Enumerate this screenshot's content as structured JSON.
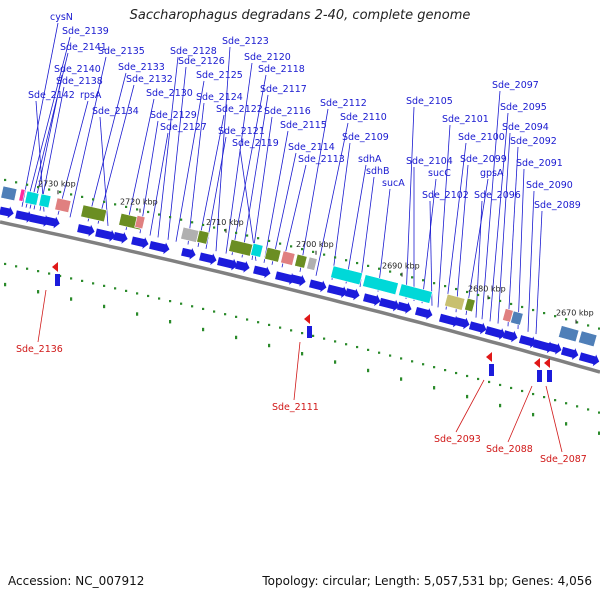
{
  "title": "Saccharophagus degradans 2-40, complete genome",
  "accession": "Accession: NC_007912",
  "summary": "Topology: circular; Length: 5,057,531 bp; Genes: 4,056",
  "colors": {
    "gene": "#1c1cdc",
    "reverse_gene": "#e01818",
    "backbone": "#808080",
    "cog_a": "#00d8d8",
    "cog_b": "#6b8e23",
    "cog_c": "#b0b0b0",
    "cog_d": "#e08080",
    "cog_e": "#4f7fb8",
    "cog_f": "#ff2aa0",
    "cog_g": "#c8c070"
  },
  "tick_labels": [
    "2730 kbp",
    "2720 kbp",
    "2710 kbp",
    "2700 kbp",
    "2690 kbp",
    "2680 kbp",
    "2670 kbp"
  ],
  "forward_labels": [
    "cysN",
    "Sde_2139",
    "Sde_2141",
    "Sde_2140",
    "Sde_2138",
    "Sde_2142",
    "rpsA",
    "Sde_2135",
    "Sde_2133",
    "Sde_2132",
    "Sde_2134",
    "Sde_2130",
    "Sde_2129",
    "Sde_2127",
    "Sde_2128",
    "Sde_2126",
    "Sde_2125",
    "Sde_2124",
    "Sde_2122",
    "Sde_2121",
    "Sde_2123",
    "Sde_2120",
    "Sde_2118",
    "Sde_2117",
    "Sde_2116",
    "Sde_2119",
    "Sde_2115",
    "Sde_2114",
    "Sde_2113",
    "Sde_2112",
    "Sde_2110",
    "Sde_2109",
    "sdhA",
    "sdhB",
    "sucA",
    "Sde_2105",
    "Sde_2104",
    "sucC",
    "Sde_2102",
    "Sde_2101",
    "Sde_2100",
    "Sde_2099",
    "gpsA",
    "Sde_2096",
    "Sde_2097",
    "Sde_2095",
    "Sde_2094",
    "Sde_2092",
    "Sde_2091",
    "Sde_2090",
    "Sde_2089"
  ],
  "reverse_labels": [
    "Sde_2136",
    "Sde_2111",
    "Sde_2093",
    "Sde_2088",
    "Sde_2087"
  ]
}
